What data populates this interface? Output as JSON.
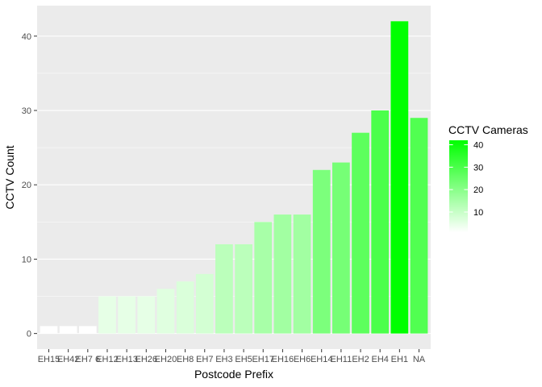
{
  "chart_data": {
    "type": "bar",
    "title": "",
    "xlabel": "Postcode Prefix",
    "ylabel": "CCTV Count",
    "ylim": [
      -2.1,
      44.1
    ],
    "y_ticks": [
      0,
      10,
      20,
      30,
      40
    ],
    "grid": true,
    "categories": [
      "EH15",
      "EH42",
      "EH7 6",
      "EH12",
      "EH13",
      "EH26",
      "EH20",
      "EH8",
      "EH7",
      "EH3",
      "EH5",
      "EH17",
      "EH16",
      "EH6",
      "EH14",
      "EH11",
      "EH2",
      "EH4",
      "EH1",
      "NA"
    ],
    "values": [
      1,
      1,
      1,
      5,
      5,
      5,
      6,
      7,
      8,
      12,
      12,
      15,
      16,
      16,
      22,
      23,
      27,
      30,
      42,
      29
    ],
    "legend": {
      "title": "CCTV Cameras",
      "position": "right",
      "ticks": [
        10,
        20,
        30,
        40
      ],
      "low_color": "#ffffff",
      "high_color": "#00ff00"
    },
    "panel_color": "#ebebeb",
    "grid_color": "#ffffff"
  }
}
